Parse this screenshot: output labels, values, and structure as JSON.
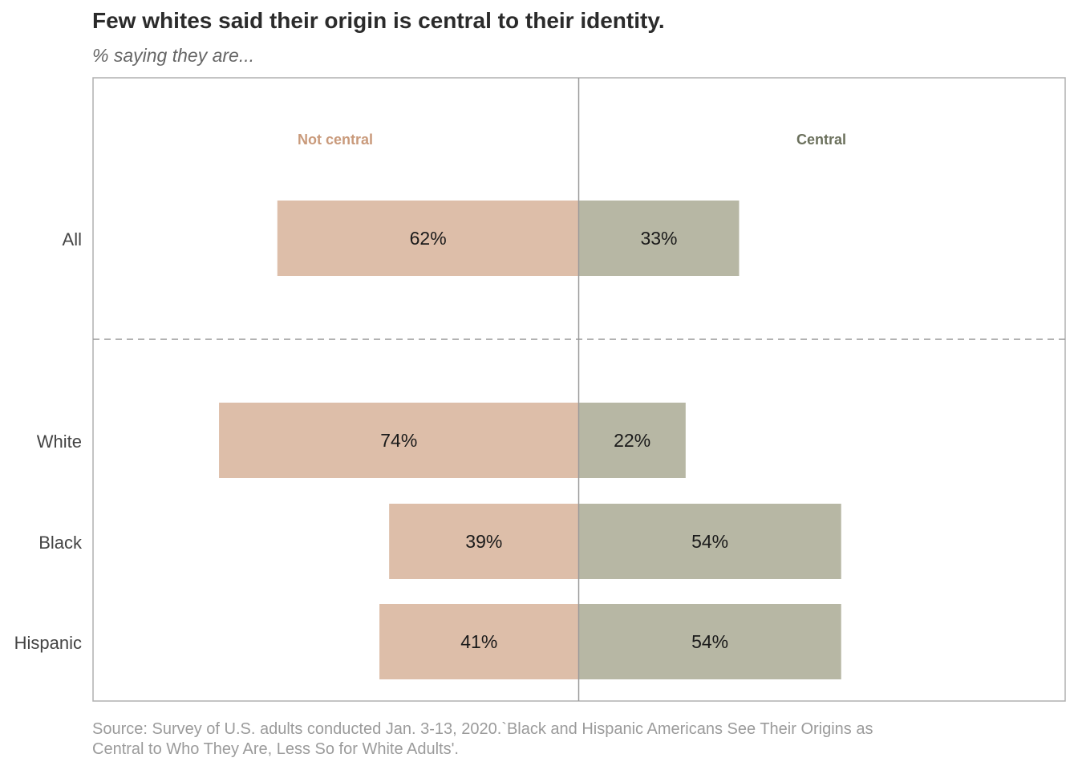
{
  "title": "Few whites said their origin is central to their identity.",
  "subtitle": "% saying they are...",
  "source": "Source: Survey of U.S. adults conducted Jan. 3-13, 2020.`Black and Hispanic Americans See Their Origins as Central to Who They Are, Less So for White Adults'.",
  "colors": {
    "not_central": "#ddbea9",
    "central": "#b7b7a4",
    "not_central_text": "#c99a7b",
    "central_text": "#6b705c"
  },
  "chart_data": {
    "type": "bar",
    "orientation": "horizontal-diverging",
    "categories": [
      "All",
      "White",
      "Black",
      "Hispanic"
    ],
    "series": [
      {
        "name": "Not central",
        "values": [
          62,
          74,
          39,
          41
        ],
        "labels": [
          "62%",
          "74%",
          "39%",
          "41%"
        ],
        "side": "left"
      },
      {
        "name": "Central",
        "values": [
          33,
          22,
          54,
          54
        ],
        "labels": [
          "33%",
          "22%",
          "54%",
          "54%"
        ],
        "side": "right"
      }
    ],
    "xlim": [
      -100,
      100
    ],
    "unit": "%",
    "separator_after": "All",
    "legend": "top",
    "grid": false
  }
}
